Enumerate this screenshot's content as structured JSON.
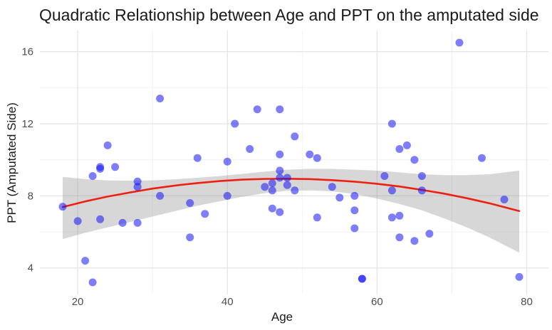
{
  "chart_data": {
    "type": "scatter",
    "title": "Quadratic Relationship between Age and PPT on the amputated side",
    "xlabel": "Age",
    "ylabel": "PPT (Amputated Side)",
    "x_ticks": [
      20,
      40,
      60,
      80
    ],
    "y_ticks": [
      4,
      8,
      12,
      16
    ],
    "x_minor_gridlines": [
      30,
      50,
      70
    ],
    "y_minor_gridlines": [
      6,
      10,
      14
    ],
    "xlim": [
      14.95,
      82.9
    ],
    "ylim": [
      2.53,
      17.17
    ],
    "grid": "major-and-minor",
    "legend": "none",
    "points": [
      [
        18,
        7.4
      ],
      [
        20,
        6.6
      ],
      [
        21,
        4.4
      ],
      [
        22,
        3.2
      ],
      [
        22,
        9.1
      ],
      [
        23,
        6.7
      ],
      [
        23,
        9.5
      ],
      [
        23,
        9.6
      ],
      [
        24,
        10.8
      ],
      [
        25,
        9.6
      ],
      [
        26,
        6.5
      ],
      [
        28,
        8.8
      ],
      [
        28,
        8.5
      ],
      [
        28,
        6.5
      ],
      [
        31,
        13.4
      ],
      [
        31,
        8.0
      ],
      [
        35,
        7.6
      ],
      [
        35,
        5.7
      ],
      [
        36,
        10.1
      ],
      [
        37,
        7.0
      ],
      [
        40,
        9.9
      ],
      [
        40,
        8.0
      ],
      [
        41,
        12.0
      ],
      [
        43,
        10.6
      ],
      [
        44,
        12.8
      ],
      [
        45,
        8.5
      ],
      [
        46,
        8.7
      ],
      [
        46,
        8.3
      ],
      [
        46,
        7.3
      ],
      [
        47,
        12.8
      ],
      [
        47,
        10.3
      ],
      [
        47,
        9.4
      ],
      [
        47,
        9.0
      ],
      [
        47,
        7.1
      ],
      [
        48,
        9.0
      ],
      [
        48,
        8.6
      ],
      [
        49,
        11.3
      ],
      [
        49,
        8.3
      ],
      [
        51,
        10.3
      ],
      [
        52,
        10.1
      ],
      [
        52,
        6.8
      ],
      [
        54,
        8.5
      ],
      [
        55,
        7.9
      ],
      [
        57,
        8.0
      ],
      [
        57,
        7.2
      ],
      [
        57,
        6.2
      ],
      [
        58,
        3.4
      ],
      [
        58,
        3.4
      ],
      [
        61,
        9.1
      ],
      [
        62,
        12.0
      ],
      [
        62,
        8.3
      ],
      [
        62,
        6.8
      ],
      [
        63,
        10.6
      ],
      [
        63,
        6.9
      ],
      [
        63,
        5.7
      ],
      [
        64,
        10.8
      ],
      [
        65,
        10.0
      ],
      [
        65,
        5.5
      ],
      [
        66,
        9.1
      ],
      [
        66,
        8.3
      ],
      [
        67,
        5.9
      ],
      [
        71,
        16.5
      ],
      [
        74,
        10.1
      ],
      [
        77,
        7.8
      ],
      [
        79,
        3.5
      ]
    ],
    "fit_curve": {
      "kind": "quadratic",
      "samples": [
        [
          18,
          7.38
        ],
        [
          21,
          7.69
        ],
        [
          24,
          7.96
        ],
        [
          27,
          8.19
        ],
        [
          30,
          8.4
        ],
        [
          33,
          8.57
        ],
        [
          36,
          8.71
        ],
        [
          39,
          8.82
        ],
        [
          42,
          8.9
        ],
        [
          45,
          8.94
        ],
        [
          48,
          8.95
        ],
        [
          51,
          8.93
        ],
        [
          54,
          8.87
        ],
        [
          57,
          8.79
        ],
        [
          60,
          8.67
        ],
        [
          63,
          8.52
        ],
        [
          66,
          8.33
        ],
        [
          69,
          8.12
        ],
        [
          72,
          7.87
        ],
        [
          75,
          7.59
        ],
        [
          79,
          7.16
        ]
      ]
    },
    "confidence_band": {
      "samples_age_lower_upper": [
        [
          18,
          5.6,
          9.05
        ],
        [
          21,
          5.95,
          8.93
        ],
        [
          24,
          6.25,
          8.86
        ],
        [
          27,
          6.55,
          8.84
        ],
        [
          30,
          6.85,
          8.86
        ],
        [
          33,
          7.15,
          8.92
        ],
        [
          36,
          7.45,
          9.0
        ],
        [
          39,
          7.7,
          9.1
        ],
        [
          42,
          7.95,
          9.22
        ],
        [
          45,
          8.15,
          9.35
        ],
        [
          48,
          8.28,
          9.45
        ],
        [
          51,
          8.3,
          9.5
        ],
        [
          54,
          8.25,
          9.5
        ],
        [
          57,
          8.1,
          9.45
        ],
        [
          60,
          7.85,
          9.4
        ],
        [
          63,
          7.55,
          9.3
        ],
        [
          66,
          7.2,
          9.2
        ],
        [
          69,
          6.75,
          9.15
        ],
        [
          72,
          6.25,
          9.15
        ],
        [
          75,
          5.7,
          9.2
        ],
        [
          79,
          4.85,
          9.4
        ]
      ]
    },
    "colors": {
      "point_fill": "rgba(20,20,245,0.55)",
      "fit_line": "#ed2111",
      "band_fill": "rgba(140,140,140,0.35)",
      "grid_major": "#e4e4e4",
      "grid_minor": "#f1f1f1",
      "tick_label": "#4d4d4d",
      "title_color": "#1a1a1a",
      "background": "#ffffff"
    },
    "point_radius": 5.5
  }
}
